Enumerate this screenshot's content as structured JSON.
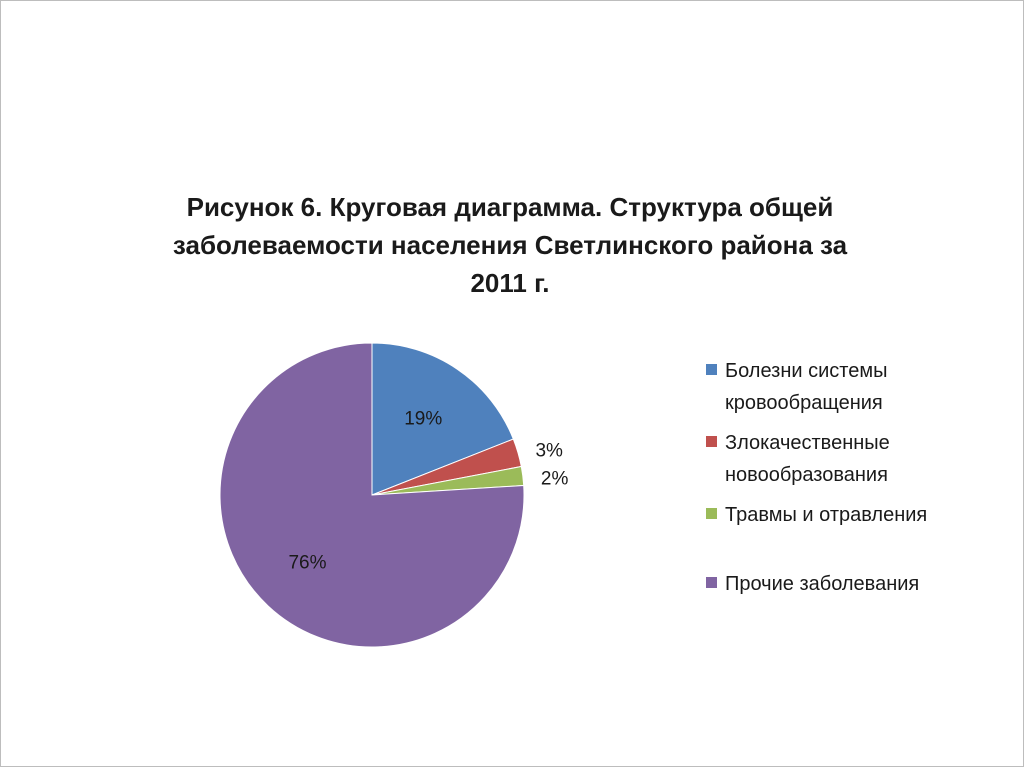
{
  "chart_data": {
    "type": "pie",
    "title_lines": [
      "Рисунок 6. Круговая диаграмма. Структура общей",
      "заболеваемости населения Светлинского района за",
      "2011 г."
    ],
    "categories": [
      "Болезни системы кровообращения",
      "Злокачественные новообразования",
      "Травмы и отравления",
      "Прочие заболевания"
    ],
    "values": [
      19,
      3,
      2,
      76
    ],
    "labels": [
      "19%",
      "3%",
      "2%",
      "76%"
    ],
    "colors": [
      "#4f81bd",
      "#c0504d",
      "#9bbb59",
      "#8064a2"
    ],
    "start_angle": "12 o'clock",
    "direction": "clockwise",
    "legend_position": "right"
  },
  "legend": {
    "items": [
      {
        "lines": [
          "Болезни системы",
          "кровообращения"
        ]
      },
      {
        "lines": [
          "Злокачественные",
          "новообразования"
        ]
      },
      {
        "lines": [
          "Травмы и отравления"
        ]
      },
      {
        "lines": [
          "Прочие заболевания"
        ]
      }
    ]
  }
}
